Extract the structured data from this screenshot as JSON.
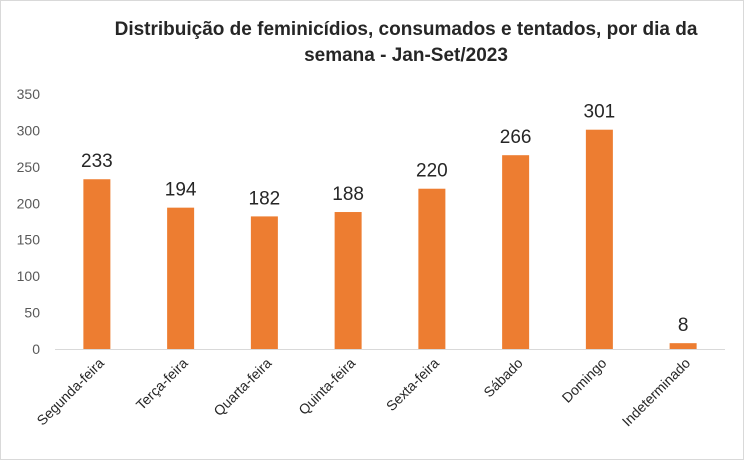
{
  "chart_data": {
    "type": "bar",
    "title": "Distribuição de feminicídios, consumados  e tentados, por dia da semana - Jan-Set/2023",
    "categories": [
      "Segunda-feira",
      "Terça-feira",
      "Quarta-feira",
      "Quinta-feira",
      "Sexta-feira",
      "Sábado",
      "Domingo",
      "Indeterminado"
    ],
    "values": [
      233,
      194,
      182,
      188,
      220,
      266,
      301,
      8
    ],
    "xlabel": "",
    "ylabel": "",
    "ylim": [
      0,
      350
    ],
    "yticks": [
      0,
      50,
      100,
      150,
      200,
      250,
      300,
      350
    ],
    "grid": false,
    "legend": "none",
    "bar_color": "#ED7D31",
    "axis_color": "#D9D9D9"
  }
}
